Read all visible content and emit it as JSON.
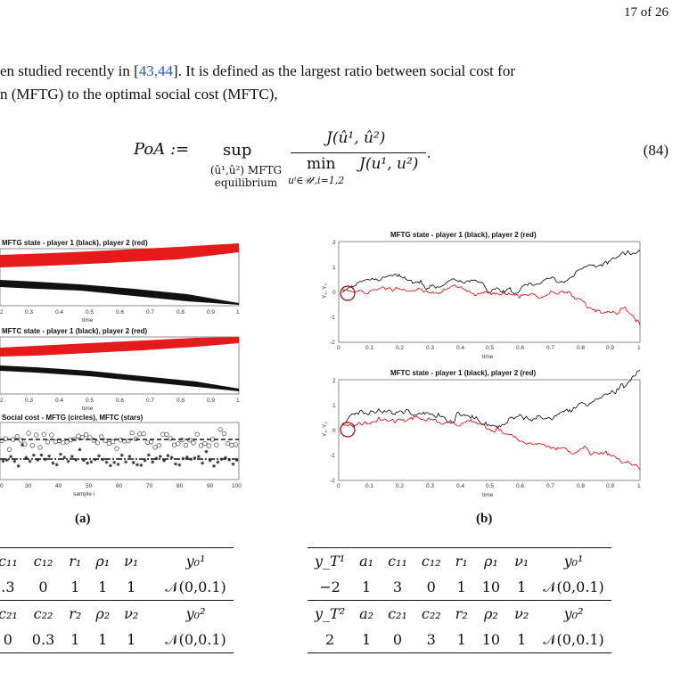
{
  "page_number": "17 of 26",
  "text": {
    "line1_a": "en studied recently in [",
    "line1_cite": "43,44",
    "line1_b": "]. It is defined as the largest ratio between social cost for",
    "line2": "n (MFTG) to the optimal social cost (MFTC),"
  },
  "equation": {
    "lhs": "PoA :=",
    "sup": "sup",
    "sup_sub_line1": "(û¹,û²) MFTG",
    "sup_sub_line2": "equilibrium",
    "numerator": "J(û¹, û²)",
    "den_min": "min",
    "den_min_sub": "uⁱ∈𝒰ⁱ,i=1,2",
    "den_rest": "J(u¹, u²)",
    "period": ".",
    "number": "(84)"
  },
  "figure_a": {
    "label": "(a)",
    "panel1_title": "MFTG state - player 1 (black), player 2 (red)",
    "panel2_title": "MFTC state - player 1 (black), player 2 (red)",
    "panel3_title": "Social cost - MFTG (circles), MFTC (stars)",
    "time_ticks": [
      "2",
      "0.3",
      "0.4",
      "0.5",
      "0.6",
      "0.7",
      "0.8",
      "0.9",
      "1"
    ],
    "time_label": "time",
    "sample_ticks": [
      "0",
      "30",
      "40",
      "50",
      "60",
      "70",
      "80",
      "90",
      "100"
    ],
    "sample_label": "sample i"
  },
  "figure_b": {
    "label": "(b)",
    "top_title": "MFTG state - player 1 (black), player 2 (red)",
    "bottom_title": "MFTC state - player 1 (black), player 2 (red)",
    "ylabel": "Y₁, Y₂",
    "y_ticks": [
      "2",
      "1",
      "0",
      "-1",
      "-2"
    ],
    "x_ticks": [
      "0",
      "0.1",
      "0.2",
      "0.3",
      "0.4",
      "0.5",
      "0.6",
      "0.7",
      "0.8",
      "0.9",
      "1"
    ],
    "xlabel": "time",
    "colors": {
      "player1": "#000000",
      "player2": "#e00000"
    }
  },
  "table_left": {
    "row1": [
      "c₁₁",
      "c₁₂",
      "r₁",
      "ρ₁",
      "ν₁",
      "y₀¹"
    ],
    "row2": [
      ".3",
      "0",
      "1",
      "1",
      "1",
      "𝒩(0,0.1)"
    ],
    "row3": [
      "c₂₁",
      "c₂₂",
      "r₂",
      "ρ₂",
      "ν₂",
      "y₀²"
    ],
    "row4": [
      "0",
      "0.3",
      "1",
      "1",
      "1",
      "𝒩(0,0.1)"
    ]
  },
  "table_right": {
    "row1": [
      "y_T¹",
      "a₁",
      "c₁₁",
      "c₁₂",
      "r₁",
      "ρ₁",
      "ν₁",
      "y₀¹"
    ],
    "row2": [
      "−2",
      "1",
      "3",
      "0",
      "1",
      "10",
      "1",
      "𝒩(0,0.1)"
    ],
    "row3": [
      "y_T²",
      "a₂",
      "c₂₁",
      "c₂₂",
      "r₂",
      "ρ₂",
      "ν₂",
      "y₀²"
    ],
    "row4": [
      "2",
      "1",
      "0",
      "3",
      "1",
      "10",
      "1",
      "𝒩(0,0.1)"
    ]
  }
}
